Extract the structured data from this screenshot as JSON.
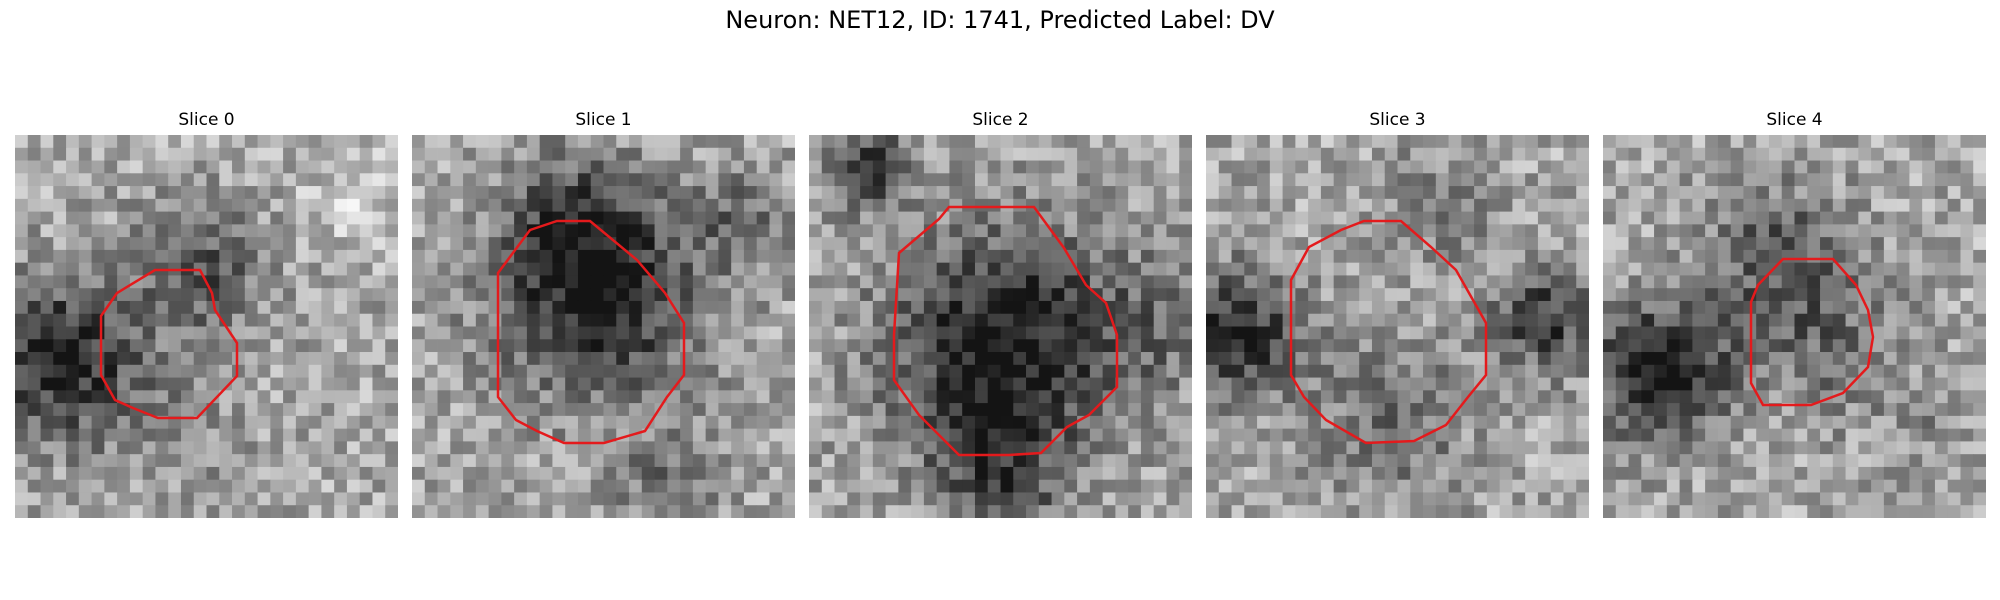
{
  "figure": {
    "title": "Neuron: NET12, ID: 1741, Predicted Label: DV",
    "contour_color": "#e41a1c",
    "colormap": "gray",
    "panels": [
      {
        "label": "Slice 0"
      },
      {
        "label": "Slice 1"
      },
      {
        "label": "Slice 2"
      },
      {
        "label": "Slice 3"
      },
      {
        "label": "Slice 4"
      }
    ]
  }
}
